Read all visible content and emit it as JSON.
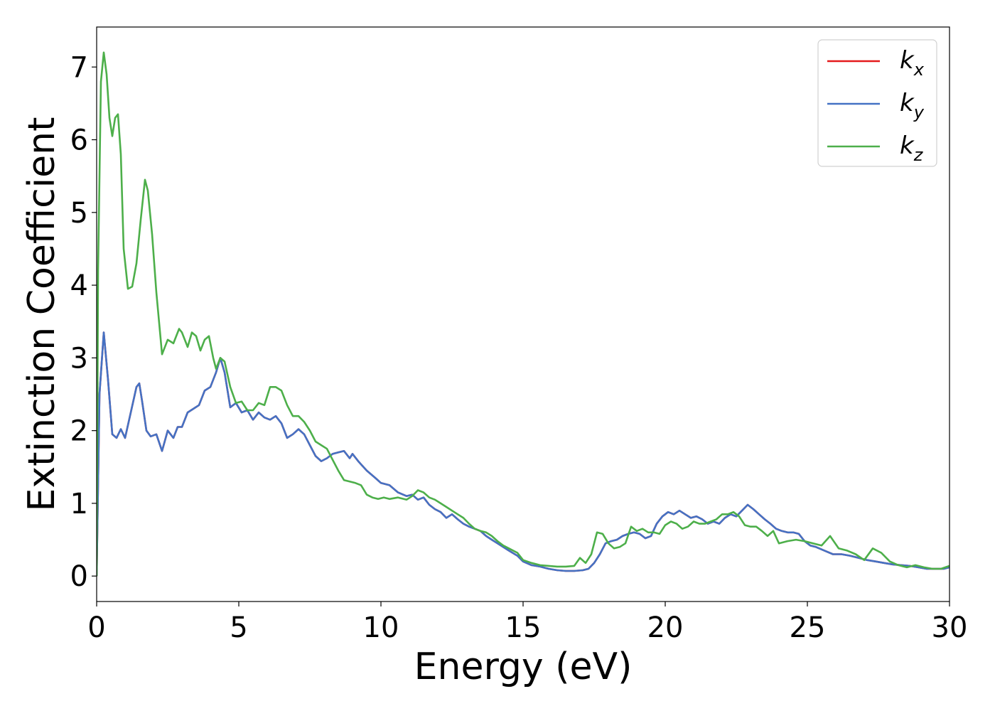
{
  "chart_data": {
    "type": "line",
    "xlabel": "Energy (eV)",
    "ylabel": "Extinction Coefficient",
    "xlim": [
      0,
      30
    ],
    "ylim": [
      -0.35,
      7.55
    ],
    "xticks": [
      "0",
      "5",
      "10",
      "15",
      "20",
      "25",
      "30"
    ],
    "yticks": [
      "0",
      "1",
      "2",
      "3",
      "4",
      "5",
      "6",
      "7"
    ],
    "grid": false,
    "legend_position": "top-right",
    "series": [
      {
        "name": "kx",
        "label_base": "k",
        "label_sub": "x",
        "color": "#e41a1c",
        "x": [
          0,
          0.1,
          0.25,
          0.4,
          0.55,
          0.7,
          0.85,
          1.0,
          1.2,
          1.4,
          1.5,
          1.6,
          1.75,
          1.9,
          2.1,
          2.3,
          2.5,
          2.7,
          2.85,
          3.0,
          3.2,
          3.4,
          3.6,
          3.8,
          4.0,
          4.2,
          4.35,
          4.5,
          4.7,
          4.9,
          5.1,
          5.3,
          5.5,
          5.7,
          5.9,
          6.1,
          6.3,
          6.5,
          6.7,
          6.9,
          7.1,
          7.3,
          7.5,
          7.7,
          7.9,
          8.1,
          8.3,
          8.5,
          8.7,
          8.9,
          9.0,
          9.2,
          9.5,
          9.8,
          10.0,
          10.3,
          10.6,
          10.9,
          11.1,
          11.3,
          11.5,
          11.7,
          11.9,
          12.1,
          12.3,
          12.5,
          12.7,
          12.9,
          13.1,
          13.3,
          13.5,
          13.7,
          13.9,
          14.1,
          14.3,
          14.5,
          14.8,
          15.0,
          15.3,
          15.6,
          15.9,
          16.2,
          16.5,
          16.8,
          17.1,
          17.3,
          17.5,
          17.7,
          17.9,
          18.1,
          18.3,
          18.5,
          18.7,
          18.9,
          19.1,
          19.3,
          19.5,
          19.7,
          19.9,
          20.1,
          20.3,
          20.5,
          20.7,
          20.9,
          21.1,
          21.3,
          21.5,
          21.7,
          21.9,
          22.1,
          22.3,
          22.5,
          22.7,
          22.9,
          23.1,
          23.3,
          23.5,
          23.7,
          23.9,
          24.1,
          24.3,
          24.5,
          24.7,
          24.9,
          25.1,
          25.3,
          25.6,
          25.9,
          26.2,
          26.5,
          26.8,
          27.1,
          27.4,
          27.7,
          28.0,
          28.3,
          28.6,
          28.9,
          29.2,
          29.5,
          29.8,
          30.0
        ],
        "y": [
          0.0,
          2.5,
          3.35,
          2.7,
          1.95,
          1.9,
          2.02,
          1.9,
          2.25,
          2.6,
          2.65,
          2.4,
          2.0,
          1.92,
          1.95,
          1.72,
          2.0,
          1.9,
          2.05,
          2.05,
          2.25,
          2.3,
          2.35,
          2.55,
          2.6,
          2.8,
          3.0,
          2.8,
          2.32,
          2.38,
          2.25,
          2.28,
          2.15,
          2.25,
          2.18,
          2.15,
          2.2,
          2.1,
          1.9,
          1.95,
          2.02,
          1.95,
          1.8,
          1.65,
          1.58,
          1.62,
          1.68,
          1.7,
          1.72,
          1.62,
          1.68,
          1.58,
          1.45,
          1.35,
          1.28,
          1.25,
          1.15,
          1.1,
          1.12,
          1.05,
          1.08,
          0.98,
          0.92,
          0.88,
          0.8,
          0.85,
          0.78,
          0.72,
          0.68,
          0.65,
          0.62,
          0.55,
          0.5,
          0.45,
          0.4,
          0.35,
          0.28,
          0.2,
          0.15,
          0.13,
          0.1,
          0.08,
          0.07,
          0.07,
          0.08,
          0.1,
          0.18,
          0.3,
          0.45,
          0.48,
          0.5,
          0.55,
          0.58,
          0.6,
          0.58,
          0.52,
          0.55,
          0.72,
          0.82,
          0.88,
          0.85,
          0.9,
          0.85,
          0.8,
          0.82,
          0.78,
          0.72,
          0.75,
          0.72,
          0.8,
          0.85,
          0.82,
          0.9,
          0.98,
          0.92,
          0.85,
          0.78,
          0.72,
          0.65,
          0.62,
          0.6,
          0.6,
          0.58,
          0.48,
          0.42,
          0.4,
          0.35,
          0.3,
          0.3,
          0.28,
          0.25,
          0.22,
          0.2,
          0.18,
          0.16,
          0.15,
          0.14,
          0.12,
          0.1,
          0.1,
          0.1,
          0.12
        ]
      },
      {
        "name": "ky",
        "label_base": "k",
        "label_sub": "y",
        "color": "#4472c4",
        "x": [
          0,
          0.1,
          0.25,
          0.4,
          0.55,
          0.7,
          0.85,
          1.0,
          1.2,
          1.4,
          1.5,
          1.6,
          1.75,
          1.9,
          2.1,
          2.3,
          2.5,
          2.7,
          2.85,
          3.0,
          3.2,
          3.4,
          3.6,
          3.8,
          4.0,
          4.2,
          4.35,
          4.5,
          4.7,
          4.9,
          5.1,
          5.3,
          5.5,
          5.7,
          5.9,
          6.1,
          6.3,
          6.5,
          6.7,
          6.9,
          7.1,
          7.3,
          7.5,
          7.7,
          7.9,
          8.1,
          8.3,
          8.5,
          8.7,
          8.9,
          9.0,
          9.2,
          9.5,
          9.8,
          10.0,
          10.3,
          10.6,
          10.9,
          11.1,
          11.3,
          11.5,
          11.7,
          11.9,
          12.1,
          12.3,
          12.5,
          12.7,
          12.9,
          13.1,
          13.3,
          13.5,
          13.7,
          13.9,
          14.1,
          14.3,
          14.5,
          14.8,
          15.0,
          15.3,
          15.6,
          15.9,
          16.2,
          16.5,
          16.8,
          17.1,
          17.3,
          17.5,
          17.7,
          17.9,
          18.1,
          18.3,
          18.5,
          18.7,
          18.9,
          19.1,
          19.3,
          19.5,
          19.7,
          19.9,
          20.1,
          20.3,
          20.5,
          20.7,
          20.9,
          21.1,
          21.3,
          21.5,
          21.7,
          21.9,
          22.1,
          22.3,
          22.5,
          22.7,
          22.9,
          23.1,
          23.3,
          23.5,
          23.7,
          23.9,
          24.1,
          24.3,
          24.5,
          24.7,
          24.9,
          25.1,
          25.3,
          25.6,
          25.9,
          26.2,
          26.5,
          26.8,
          27.1,
          27.4,
          27.7,
          28.0,
          28.3,
          28.6,
          28.9,
          29.2,
          29.5,
          29.8,
          30.0
        ],
        "y": [
          0.0,
          2.5,
          3.35,
          2.7,
          1.95,
          1.9,
          2.02,
          1.9,
          2.25,
          2.6,
          2.65,
          2.4,
          2.0,
          1.92,
          1.95,
          1.72,
          2.0,
          1.9,
          2.05,
          2.05,
          2.25,
          2.3,
          2.35,
          2.55,
          2.6,
          2.8,
          3.0,
          2.8,
          2.32,
          2.38,
          2.25,
          2.28,
          2.15,
          2.25,
          2.18,
          2.15,
          2.2,
          2.1,
          1.9,
          1.95,
          2.02,
          1.95,
          1.8,
          1.65,
          1.58,
          1.62,
          1.68,
          1.7,
          1.72,
          1.62,
          1.68,
          1.58,
          1.45,
          1.35,
          1.28,
          1.25,
          1.15,
          1.1,
          1.12,
          1.05,
          1.08,
          0.98,
          0.92,
          0.88,
          0.8,
          0.85,
          0.78,
          0.72,
          0.68,
          0.65,
          0.62,
          0.55,
          0.5,
          0.45,
          0.4,
          0.35,
          0.28,
          0.2,
          0.15,
          0.13,
          0.1,
          0.08,
          0.07,
          0.07,
          0.08,
          0.1,
          0.18,
          0.3,
          0.45,
          0.48,
          0.5,
          0.55,
          0.58,
          0.6,
          0.58,
          0.52,
          0.55,
          0.72,
          0.82,
          0.88,
          0.85,
          0.9,
          0.85,
          0.8,
          0.82,
          0.78,
          0.72,
          0.75,
          0.72,
          0.8,
          0.85,
          0.82,
          0.9,
          0.98,
          0.92,
          0.85,
          0.78,
          0.72,
          0.65,
          0.62,
          0.6,
          0.6,
          0.58,
          0.48,
          0.42,
          0.4,
          0.35,
          0.3,
          0.3,
          0.28,
          0.25,
          0.22,
          0.2,
          0.18,
          0.16,
          0.15,
          0.14,
          0.12,
          0.1,
          0.1,
          0.1,
          0.12
        ]
      },
      {
        "name": "kz",
        "label_base": "k",
        "label_sub": "z",
        "color": "#4daf4a",
        "x": [
          0,
          0.05,
          0.15,
          0.25,
          0.35,
          0.45,
          0.55,
          0.65,
          0.75,
          0.85,
          0.95,
          1.1,
          1.25,
          1.4,
          1.55,
          1.7,
          1.8,
          1.95,
          2.1,
          2.3,
          2.5,
          2.7,
          2.9,
          3.0,
          3.2,
          3.35,
          3.5,
          3.65,
          3.8,
          3.95,
          4.1,
          4.2,
          4.35,
          4.5,
          4.7,
          4.9,
          5.1,
          5.3,
          5.5,
          5.7,
          5.9,
          6.1,
          6.3,
          6.5,
          6.7,
          6.9,
          7.1,
          7.3,
          7.5,
          7.7,
          7.9,
          8.1,
          8.3,
          8.5,
          8.7,
          8.9,
          9.1,
          9.3,
          9.5,
          9.7,
          9.9,
          10.1,
          10.3,
          10.6,
          10.9,
          11.1,
          11.3,
          11.5,
          11.7,
          11.9,
          12.1,
          12.3,
          12.5,
          12.7,
          12.9,
          13.1,
          13.3,
          13.5,
          13.7,
          13.9,
          14.1,
          14.3,
          14.5,
          14.8,
          15.0,
          15.3,
          15.6,
          15.9,
          16.2,
          16.5,
          16.8,
          17.0,
          17.2,
          17.4,
          17.6,
          17.8,
          18.0,
          18.2,
          18.4,
          18.6,
          18.8,
          19.0,
          19.2,
          19.4,
          19.6,
          19.8,
          20.0,
          20.2,
          20.4,
          20.6,
          20.8,
          21.0,
          21.2,
          21.4,
          21.6,
          21.8,
          22.0,
          22.2,
          22.4,
          22.6,
          22.8,
          23.0,
          23.2,
          23.4,
          23.6,
          23.8,
          24.0,
          24.3,
          24.6,
          24.9,
          25.2,
          25.5,
          25.8,
          26.1,
          26.4,
          26.7,
          27.0,
          27.3,
          27.6,
          27.9,
          28.2,
          28.5,
          28.8,
          29.1,
          29.4,
          29.7,
          30.0
        ],
        "y": [
          0.0,
          4.2,
          6.8,
          7.2,
          6.9,
          6.3,
          6.05,
          6.3,
          6.35,
          5.8,
          4.5,
          3.95,
          3.98,
          4.3,
          4.9,
          5.45,
          5.3,
          4.7,
          3.9,
          3.05,
          3.25,
          3.2,
          3.4,
          3.35,
          3.15,
          3.35,
          3.3,
          3.1,
          3.25,
          3.3,
          3.0,
          2.85,
          3.0,
          2.95,
          2.6,
          2.38,
          2.4,
          2.28,
          2.28,
          2.38,
          2.35,
          2.6,
          2.6,
          2.55,
          2.35,
          2.2,
          2.2,
          2.12,
          2.0,
          1.85,
          1.8,
          1.75,
          1.6,
          1.45,
          1.32,
          1.3,
          1.28,
          1.25,
          1.12,
          1.08,
          1.06,
          1.08,
          1.06,
          1.08,
          1.05,
          1.1,
          1.18,
          1.15,
          1.08,
          1.05,
          1.0,
          0.95,
          0.9,
          0.85,
          0.8,
          0.72,
          0.65,
          0.62,
          0.6,
          0.55,
          0.48,
          0.42,
          0.38,
          0.32,
          0.22,
          0.18,
          0.15,
          0.14,
          0.13,
          0.13,
          0.14,
          0.25,
          0.18,
          0.3,
          0.6,
          0.58,
          0.45,
          0.38,
          0.4,
          0.45,
          0.68,
          0.62,
          0.65,
          0.6,
          0.6,
          0.58,
          0.7,
          0.75,
          0.72,
          0.65,
          0.68,
          0.75,
          0.72,
          0.72,
          0.75,
          0.78,
          0.85,
          0.85,
          0.88,
          0.82,
          0.7,
          0.68,
          0.68,
          0.62,
          0.55,
          0.62,
          0.45,
          0.48,
          0.5,
          0.48,
          0.45,
          0.42,
          0.55,
          0.38,
          0.35,
          0.3,
          0.22,
          0.38,
          0.32,
          0.2,
          0.15,
          0.12,
          0.15,
          0.12,
          0.1,
          0.1,
          0.14
        ]
      }
    ]
  }
}
